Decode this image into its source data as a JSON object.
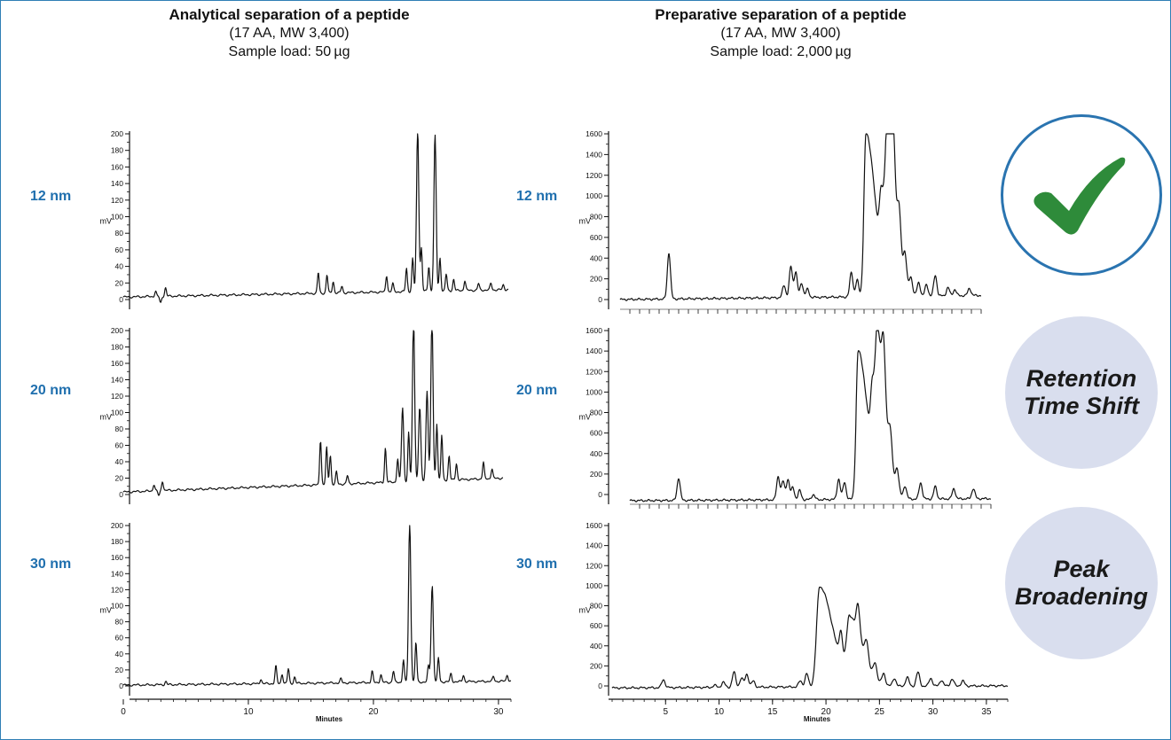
{
  "left_header": {
    "title": "Analytical separation of a peptide",
    "sub1": "(17 AA, MW 3,400)",
    "sub2": "Sample load: 50 µg"
  },
  "right_header": {
    "title": "Preparative separation of a peptide",
    "sub1": "(17 AA, MW 3,400)",
    "sub2": "Sample load: 2,000 µg"
  },
  "pore_labels": [
    "12 nm",
    "20 nm",
    "30 nm"
  ],
  "badges": {
    "check_icon": "check-icon",
    "retention": [
      "Retention",
      "Time Shift"
    ],
    "broadening": [
      "Peak",
      "Broadening"
    ],
    "check_color": "#2e8b3a",
    "accent": "#1f6fae"
  },
  "chart_data": [
    {
      "type": "line",
      "panel": "analytical-12nm",
      "ylabel": "mV",
      "ylim": [
        0,
        200
      ],
      "yticks": [
        0,
        20,
        40,
        60,
        80,
        100,
        120,
        140,
        160,
        180,
        200
      ],
      "xlim": [
        0,
        31
      ],
      "baseline": [
        [
          0,
          3
        ],
        [
          31,
          12
        ]
      ],
      "peaks": [
        [
          2.6,
          6
        ],
        [
          3.0,
          -8
        ],
        [
          3.4,
          10
        ],
        [
          15.7,
          25
        ],
        [
          16.4,
          22
        ],
        [
          16.9,
          14
        ],
        [
          17.6,
          8
        ],
        [
          21.2,
          20
        ],
        [
          21.7,
          10
        ],
        [
          22.8,
          28
        ],
        [
          23.3,
          40
        ],
        [
          23.7,
          200
        ],
        [
          24.0,
          52
        ],
        [
          24.6,
          30
        ],
        [
          25.1,
          188
        ],
        [
          25.5,
          40
        ],
        [
          26.0,
          20
        ],
        [
          26.6,
          14
        ],
        [
          27.5,
          12
        ],
        [
          28.6,
          8
        ],
        [
          29.6,
          8
        ],
        [
          30.6,
          6
        ]
      ]
    },
    {
      "type": "line",
      "panel": "analytical-20nm",
      "ylabel": "mV",
      "ylim": [
        0,
        200
      ],
      "yticks": [
        0,
        20,
        40,
        60,
        80,
        100,
        120,
        140,
        160,
        180,
        200
      ],
      "xlim": [
        0,
        31
      ],
      "baseline": [
        [
          0,
          3
        ],
        [
          31,
          20
        ]
      ],
      "peaks": [
        [
          2.5,
          8
        ],
        [
          2.9,
          -6
        ],
        [
          3.2,
          12
        ],
        [
          16.1,
          55
        ],
        [
          16.6,
          45
        ],
        [
          16.9,
          36
        ],
        [
          17.4,
          15
        ],
        [
          18.3,
          10
        ],
        [
          21.4,
          42
        ],
        [
          22.4,
          28
        ],
        [
          22.8,
          90
        ],
        [
          23.3,
          60
        ],
        [
          23.7,
          200
        ],
        [
          24.2,
          90
        ],
        [
          24.8,
          110
        ],
        [
          25.2,
          200
        ],
        [
          25.6,
          70
        ],
        [
          26.0,
          55
        ],
        [
          26.6,
          30
        ],
        [
          27.2,
          20
        ],
        [
          29.4,
          20
        ],
        [
          30.1,
          12
        ]
      ]
    },
    {
      "type": "line",
      "panel": "analytical-30nm",
      "ylabel": "mV",
      "ylim": [
        0,
        200
      ],
      "yticks": [
        0,
        20,
        40,
        60,
        80,
        100,
        120,
        140,
        160,
        180,
        200
      ],
      "xlim": [
        0,
        31
      ],
      "xticks": [
        0,
        10,
        20,
        30
      ],
      "xlabel": "Minutes",
      "baseline": [
        [
          0,
          1
        ],
        [
          31,
          6
        ]
      ],
      "peaks": [
        [
          3.4,
          4
        ],
        [
          11.0,
          6
        ],
        [
          12.2,
          22
        ],
        [
          12.7,
          12
        ],
        [
          13.2,
          18
        ],
        [
          13.7,
          8
        ],
        [
          17.4,
          5
        ],
        [
          19.9,
          14
        ],
        [
          20.6,
          10
        ],
        [
          21.6,
          14
        ],
        [
          22.4,
          28
        ],
        [
          22.9,
          200
        ],
        [
          23.4,
          50
        ],
        [
          24.4,
          20
        ],
        [
          24.7,
          120
        ],
        [
          25.2,
          30
        ],
        [
          26.2,
          10
        ],
        [
          27.2,
          8
        ],
        [
          29.6,
          6
        ],
        [
          30.7,
          8
        ]
      ]
    },
    {
      "type": "line",
      "panel": "preparative-12nm",
      "ylabel": "mV",
      "ylim": [
        0,
        1600
      ],
      "yticks": [
        0,
        200,
        400,
        600,
        800,
        1000,
        1200,
        1400,
        1600
      ],
      "xlim": [
        0,
        37
      ],
      "baseline": [
        [
          0,
          0
        ],
        [
          37,
          40
        ]
      ],
      "peaks": [
        [
          5.0,
          450
        ],
        [
          16.8,
          120
        ],
        [
          17.5,
          300
        ],
        [
          18.0,
          250
        ],
        [
          18.6,
          140
        ],
        [
          19.2,
          80
        ],
        [
          23.7,
          240
        ],
        [
          24.3,
          160
        ],
        [
          25.2,
          1580
        ],
        [
          26.8,
          700
        ],
        [
          27.4,
          1050
        ],
        [
          28.0,
          540
        ],
        [
          28.6,
          330
        ],
        [
          29.2,
          250
        ],
        [
          29.8,
          150
        ],
        [
          30.6,
          130
        ],
        [
          31.4,
          110
        ],
        [
          32.3,
          200
        ],
        [
          33.6,
          80
        ],
        [
          34.3,
          60
        ],
        [
          35.8,
          70
        ]
      ]
    },
    {
      "type": "line",
      "panel": "preparative-20nm",
      "ylabel": "mV",
      "ylim": [
        0,
        1600
      ],
      "yticks": [
        0,
        200,
        400,
        600,
        800,
        1000,
        1200,
        1400,
        1600
      ],
      "xlim": [
        0,
        37
      ],
      "baseline": [
        [
          0,
          -60
        ],
        [
          37,
          -40
        ]
      ],
      "peaks": [
        [
          5.0,
          220
        ],
        [
          15.2,
          230
        ],
        [
          15.7,
          180
        ],
        [
          16.2,
          200
        ],
        [
          16.7,
          120
        ],
        [
          17.4,
          90
        ],
        [
          18.8,
          50
        ],
        [
          21.4,
          200
        ],
        [
          22.0,
          170
        ],
        [
          23.4,
          1450
        ],
        [
          24.9,
          780
        ],
        [
          25.4,
          900
        ],
        [
          26.0,
          460
        ],
        [
          26.7,
          250
        ],
        [
          27.4,
          200
        ],
        [
          28.2,
          120
        ],
        [
          29.8,
          160
        ],
        [
          31.3,
          120
        ],
        [
          33.2,
          100
        ],
        [
          35.2,
          100
        ]
      ]
    },
    {
      "type": "line",
      "panel": "preparative-30nm",
      "ylabel": "mV",
      "ylim": [
        0,
        1600
      ],
      "yticks": [
        0,
        200,
        400,
        600,
        800,
        1000,
        1200,
        1400,
        1600
      ],
      "xlim": [
        0,
        37
      ],
      "xticks": [
        5,
        10,
        15,
        20,
        25,
        30,
        35
      ],
      "xlabel": "Minutes",
      "baseline": [
        [
          0,
          -20
        ],
        [
          33.5,
          0
        ]
      ],
      "peaks": [
        [
          4.8,
          80
        ],
        [
          9.6,
          20
        ],
        [
          10.4,
          50
        ],
        [
          11.4,
          150
        ],
        [
          12.1,
          90
        ],
        [
          12.6,
          130
        ],
        [
          13.2,
          60
        ],
        [
          17.6,
          60
        ],
        [
          18.2,
          130
        ],
        [
          19.4,
          1000
        ],
        [
          21.4,
          300
        ],
        [
          22.2,
          650
        ],
        [
          23.0,
          300
        ],
        [
          23.8,
          200
        ],
        [
          24.6,
          150
        ],
        [
          25.4,
          110
        ],
        [
          26.4,
          80
        ],
        [
          27.6,
          90
        ],
        [
          28.6,
          140
        ],
        [
          29.8,
          80
        ],
        [
          30.8,
          60
        ],
        [
          31.8,
          70
        ],
        [
          32.8,
          50
        ]
      ]
    }
  ]
}
